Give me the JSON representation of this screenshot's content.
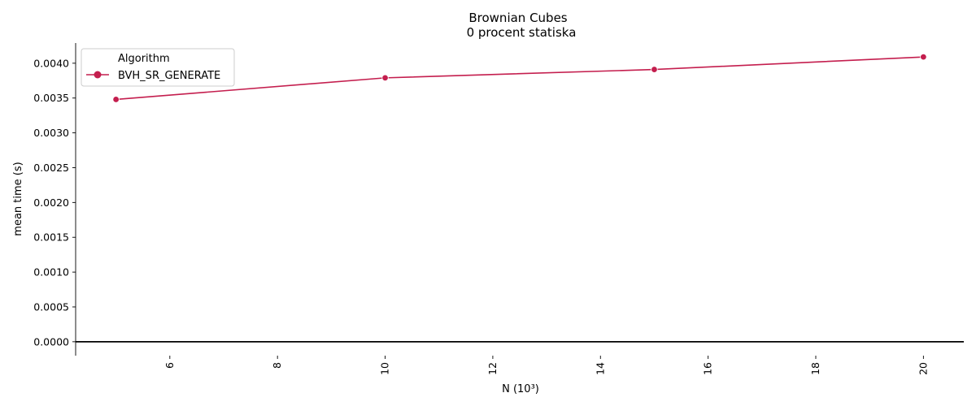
{
  "chart_data": {
    "type": "line",
    "title": "Brownian Cubes",
    "subtitle": "0 procent statiska",
    "xlabel": "N (10³)",
    "ylabel": "mean time (s)",
    "xlim": [
      4.25,
      20.75
    ],
    "ylim": [
      -0.0002,
      0.00429
    ],
    "xticks": [
      "6",
      "8",
      "10",
      "12",
      "14",
      "16",
      "18",
      "20"
    ],
    "yticks": [
      "0.0000",
      "0.0005",
      "0.0010",
      "0.0015",
      "0.0020",
      "0.0025",
      "0.0030",
      "0.0035",
      "0.0040"
    ],
    "x": [
      5,
      10,
      15,
      20
    ],
    "series": [
      {
        "name": "BVH_SR_GENERATE",
        "values": [
          0.00348,
          0.00379,
          0.00391,
          0.00409
        ],
        "color": "#c41e4e"
      }
    ],
    "legend": {
      "title": "Algorithm",
      "placement": "upper-left"
    },
    "zero_line": true,
    "grid": false
  }
}
